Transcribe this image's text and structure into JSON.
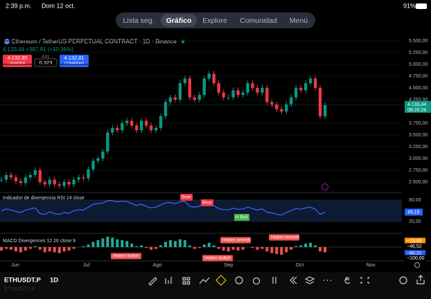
{
  "status": {
    "time": "2:39 p.m.",
    "date": "Dom 12 oct.",
    "battery": "91%"
  },
  "tabs": [
    "Lista seg.",
    "Gráfico",
    "Explore",
    "Comunidad",
    "Menú"
  ],
  "symbol": {
    "name": "Ethereum / TetherUS PERPETUAL CONTRACT · 1D · Binance",
    "price_line": "4.133,44 +387,91 (+10,36%)"
  },
  "trade": {
    "sell_price": "4.132,80",
    "sell_label": "VENDER",
    "spread_top": "0.01",
    "spread_bottom": "0.323",
    "buy_price": "4.132,81",
    "buy_label": "COMPRAR"
  },
  "price_axis": {
    "ticks": [
      {
        "value": 5500,
        "label": "5.500,00"
      },
      {
        "value": 5250,
        "label": "5.250,00"
      },
      {
        "value": 5000,
        "label": "5.000,00"
      },
      {
        "value": 4750,
        "label": "4.750,00"
      },
      {
        "value": 4500,
        "label": "4.500,00"
      },
      {
        "value": 4250,
        "label": "4.250,00"
      },
      {
        "value": 3750,
        "label": "3.750,00"
      },
      {
        "value": 3500,
        "label": "3.500,00"
      },
      {
        "value": 3250,
        "label": "3.250,00"
      },
      {
        "value": 3000,
        "label": "3.000,00"
      },
      {
        "value": 2750,
        "label": "2.750,00"
      },
      {
        "value": 2500,
        "label": "2.500,00"
      }
    ]
  },
  "price_tag": {
    "price": "4.133,44",
    "timer": "06:20:26"
  },
  "candles": {
    "closes": [
      2550,
      2650,
      2600,
      2520,
      2480,
      2600,
      2650,
      2750,
      2500,
      2450,
      2550,
      2450,
      2420,
      2500,
      2450,
      2550,
      2600,
      2580,
      2770,
      2950,
      3000,
      3150,
      3550,
      3650,
      3600,
      3750,
      3800,
      3700,
      3600,
      3800,
      3700,
      3600,
      3650,
      3900,
      4200,
      4300,
      4250,
      4600,
      4700,
      4300,
      4250,
      4350,
      4700,
      4800,
      4600,
      4400,
      4300,
      4300,
      4450,
      4350,
      4400,
      4600,
      4500,
      4400,
      4500,
      4200,
      4150,
      4050,
      4000,
      4150,
      4300,
      4500,
      4450,
      4600,
      4700,
      4500,
      3900,
      4133.44
    ]
  },
  "rsi": {
    "title": "Indicador de divergencia RSI 14 close",
    "values": [
      50,
      55,
      52,
      48,
      45,
      52,
      55,
      58,
      42,
      40,
      47,
      42,
      40,
      45,
      43,
      50,
      53,
      52,
      60,
      68,
      70,
      72,
      78,
      78,
      75,
      77,
      76,
      70,
      65,
      68,
      62,
      58,
      60,
      66,
      72,
      73,
      70,
      75,
      76,
      62,
      60,
      63,
      70,
      72,
      64,
      56,
      53,
      53,
      57,
      54,
      55,
      60,
      56,
      52,
      55,
      46,
      44,
      40,
      38,
      45,
      50,
      56,
      54,
      58,
      60,
      54,
      40,
      46.18
    ],
    "ticks": [
      {
        "value": 80,
        "label": "80,00"
      },
      {
        "value": 20,
        "label": "20,00"
      }
    ],
    "tag": "46,18",
    "annotations": [
      "Bear",
      "Bear",
      "H Bull"
    ]
  },
  "macd": {
    "title": "MACD Divergences 12 26 close 9",
    "histogram": [
      -20,
      -10,
      -15,
      -25,
      -30,
      -20,
      -10,
      5,
      -15,
      -30,
      -25,
      -30,
      -35,
      -25,
      -20,
      -10,
      0,
      5,
      15,
      30,
      40,
      50,
      60,
      55,
      45,
      40,
      35,
      20,
      5,
      10,
      -5,
      -15,
      -10,
      10,
      30,
      40,
      35,
      45,
      40,
      10,
      -10,
      -5,
      15,
      25,
      10,
      -10,
      -20,
      -25,
      -15,
      -20,
      -15,
      0,
      -5,
      -15,
      -10,
      -25,
      -35,
      -40,
      -45,
      -30,
      -15,
      5,
      10,
      20,
      25,
      10,
      -25,
      -30
    ],
    "labels": [
      "−13,89",
      "−46,52",
      "−60,21",
      "−100,00"
    ],
    "annotations": [
      "Hidden bullish",
      "Hidden bullish",
      "Hidden bearish",
      "Hidden bearish"
    ]
  },
  "months": [
    "Jun",
    "Jul",
    "Ago",
    "Sep",
    "Oct",
    "Nov"
  ],
  "toolbar": {
    "symbol": "ETHUSDT.P",
    "interval": "1D"
  }
}
